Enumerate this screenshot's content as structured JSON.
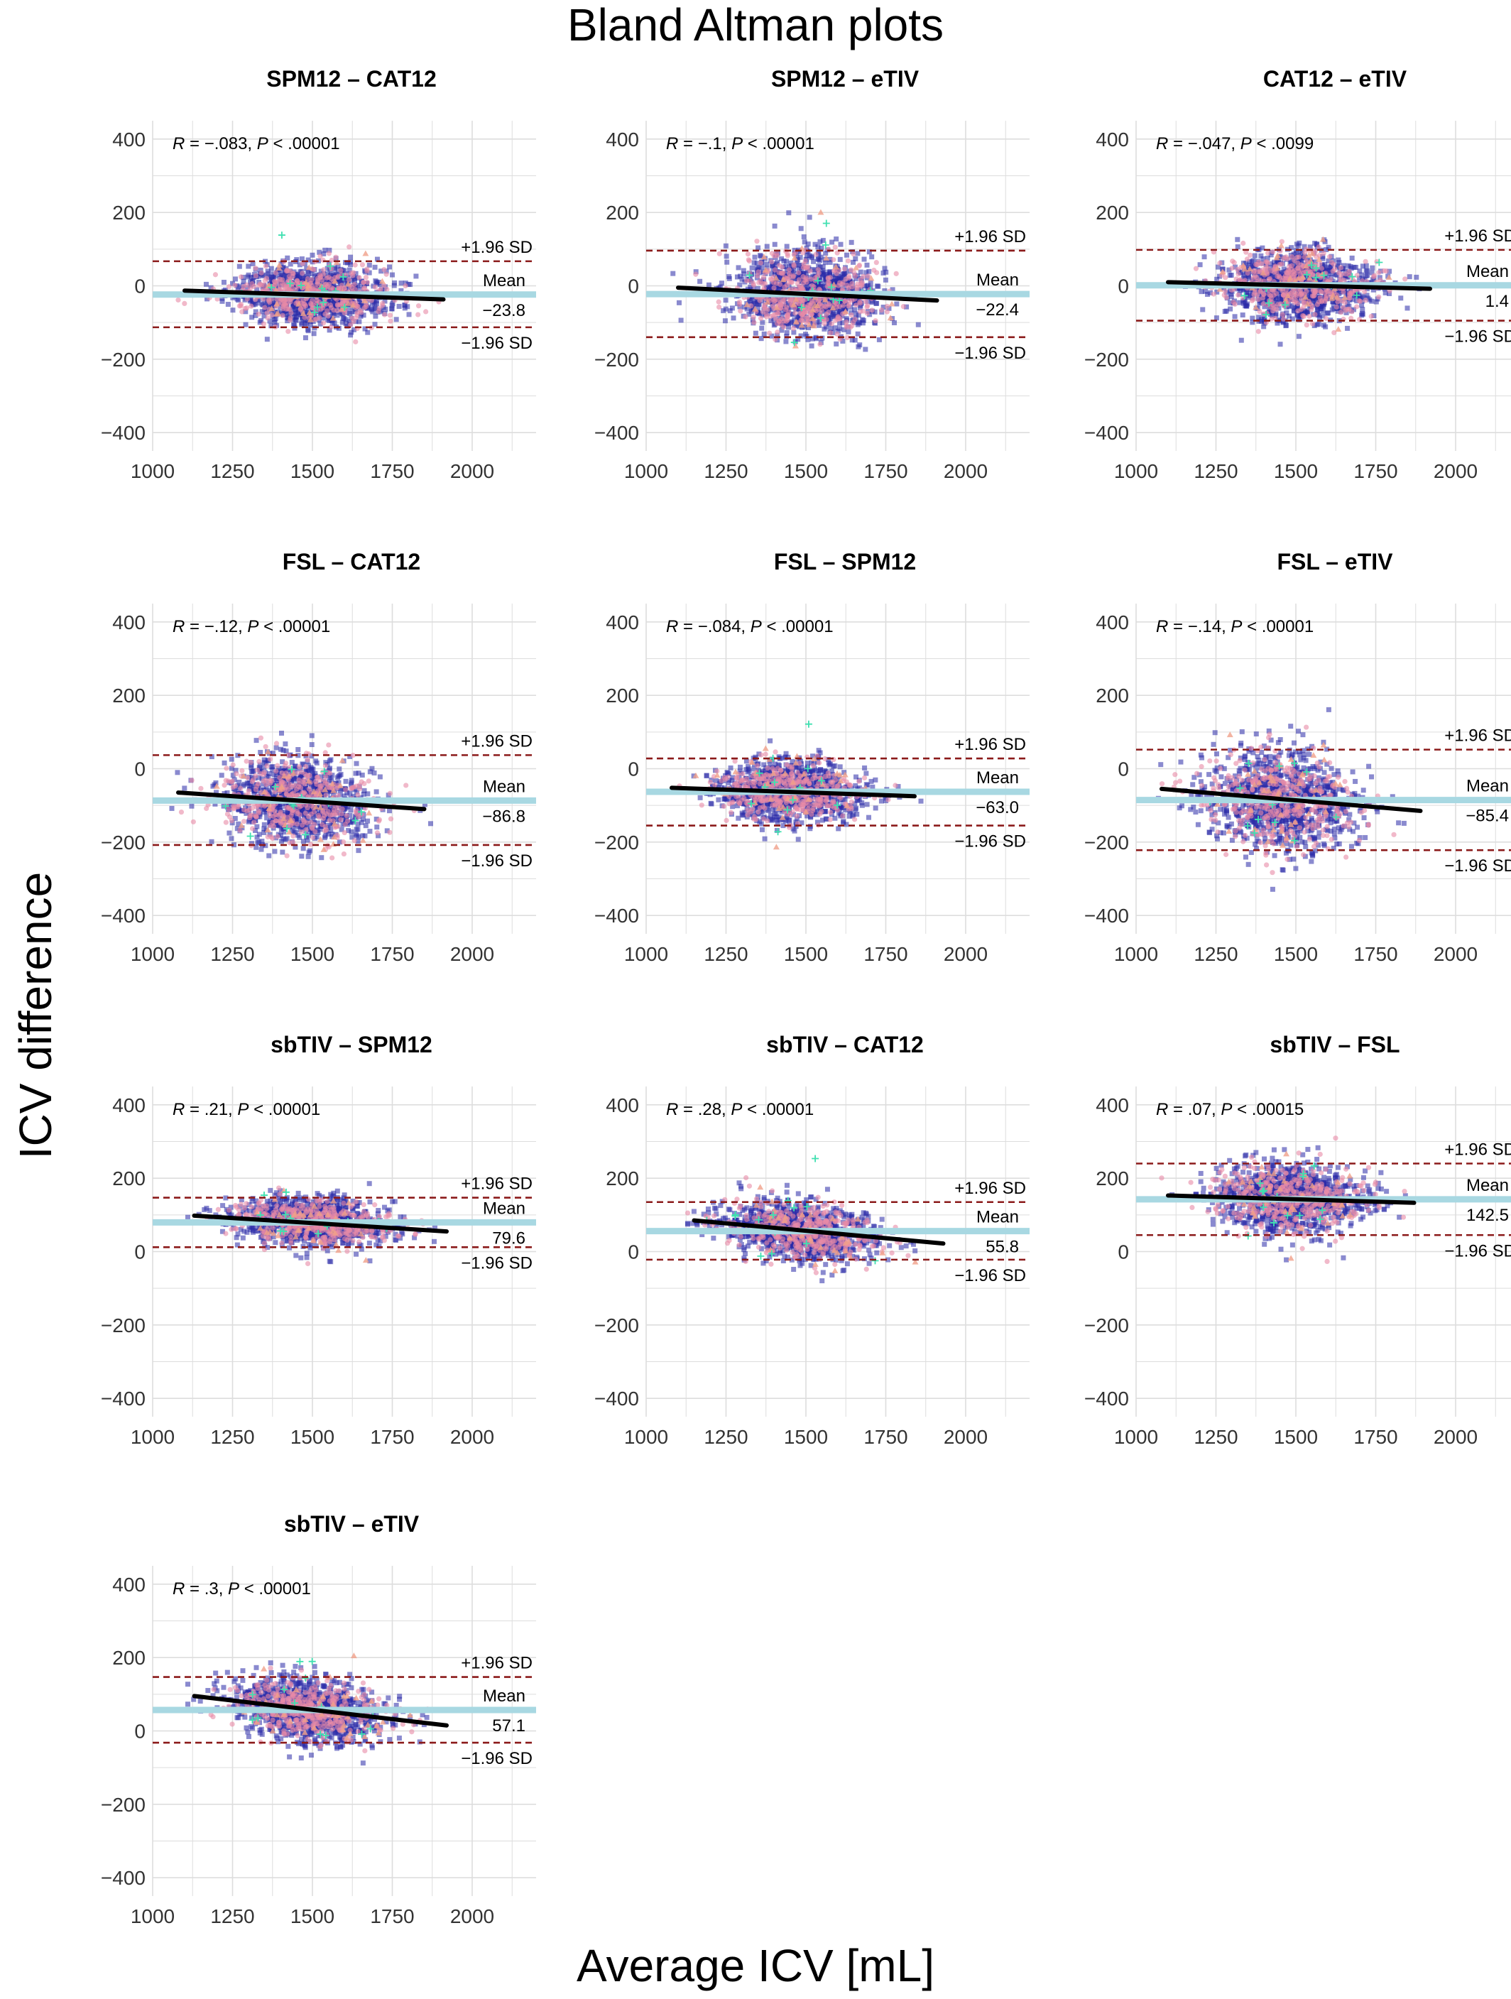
{
  "title": "Bland Altman plots",
  "xlabel": "Average ICV [mL]",
  "ylabel": "ICV difference",
  "colors": {
    "points_square": "#2a2aa8",
    "points_circle": "#e88aa6",
    "points_triangle": "#f0a08a",
    "points_plus": "#3fe0b0",
    "mean_line": "#a8d8e2",
    "sd_line": "#8b1a1a",
    "regression_line": "#000000",
    "grid": "#dddddd"
  },
  "labels": {
    "plus_sd": "+1.96 SD",
    "minus_sd": "−1.96 SD",
    "mean": "Mean"
  },
  "chart_data": [
    {
      "type": "scatter",
      "title": "SPM12 – CAT12",
      "r_label": "R",
      "r_text": " = −.083, ",
      "p_label": "P",
      "p_text": " < .00001",
      "mean": -23.8,
      "mean_text": "−23.8",
      "upper_sd": 67,
      "lower_sd": -113,
      "x_center": 1500,
      "x_sd": 120,
      "y_spread": 45,
      "regression": [
        [
          1100,
          -13
        ],
        [
          1910,
          -37
        ]
      ],
      "xlim": [
        1000,
        2200
      ],
      "ylim": [
        -450,
        450
      ],
      "x_ticks": [
        1000,
        1250,
        1500,
        1750,
        2000
      ],
      "y_ticks": [
        -400,
        -200,
        0,
        200,
        400
      ],
      "grid": true
    },
    {
      "type": "scatter",
      "title": "SPM12 – eTIV",
      "r_label": "R",
      "r_text": " = −.1, ",
      "p_label": "P",
      "p_text": " < .00001",
      "mean": -22.4,
      "mean_text": "−22.4",
      "upper_sd": 96,
      "lower_sd": -140,
      "x_center": 1500,
      "x_sd": 120,
      "y_spread": 60,
      "regression": [
        [
          1100,
          -5
        ],
        [
          1910,
          -40
        ]
      ],
      "xlim": [
        1000,
        2200
      ],
      "ylim": [
        -450,
        450
      ],
      "x_ticks": [
        1000,
        1250,
        1500,
        1750,
        2000
      ],
      "y_ticks": [
        -400,
        -200,
        0,
        200,
        400
      ],
      "grid": true
    },
    {
      "type": "scatter",
      "title": "CAT12 – eTIV",
      "r_label": "R",
      "r_text": " = −.047, ",
      "p_label": "P",
      "p_text": " < .0099",
      "mean": 1.4,
      "mean_text": "1.4",
      "upper_sd": 98,
      "lower_sd": -95,
      "x_center": 1510,
      "x_sd": 120,
      "y_spread": 50,
      "regression": [
        [
          1100,
          10
        ],
        [
          1920,
          -8
        ]
      ],
      "xlim": [
        1000,
        2200
      ],
      "ylim": [
        -450,
        450
      ],
      "x_ticks": [
        1000,
        1250,
        1500,
        1750,
        2000
      ],
      "y_ticks": [
        -400,
        -200,
        0,
        200,
        400
      ],
      "grid": true
    },
    {
      "type": "scatter",
      "title": "FSL – CAT12",
      "r_label": "R",
      "r_text": " = −.12, ",
      "p_label": "P",
      "p_text": " < .00001",
      "mean": -86.8,
      "mean_text": "−86.8",
      "upper_sd": 37,
      "lower_sd": -208,
      "x_center": 1450,
      "x_sd": 120,
      "y_spread": 62,
      "regression": [
        [
          1080,
          -65
        ],
        [
          1850,
          -110
        ]
      ],
      "xlim": [
        1000,
        2200
      ],
      "ylim": [
        -450,
        450
      ],
      "x_ticks": [
        1000,
        1250,
        1500,
        1750,
        2000
      ],
      "y_ticks": [
        -400,
        -200,
        0,
        200,
        400
      ],
      "grid": true
    },
    {
      "type": "scatter",
      "title": "FSL – SPM12",
      "r_label": "R",
      "r_text": " = −.084, ",
      "p_label": "P",
      "p_text": " < .00001",
      "mean": -63.0,
      "mean_text": "−63.0",
      "upper_sd": 28,
      "lower_sd": -155,
      "x_center": 1450,
      "x_sd": 110,
      "y_spread": 45,
      "regression": [
        [
          1080,
          -52
        ],
        [
          1840,
          -75
        ]
      ],
      "xlim": [
        1000,
        2200
      ],
      "ylim": [
        -450,
        450
      ],
      "x_ticks": [
        1000,
        1250,
        1500,
        1750,
        2000
      ],
      "y_ticks": [
        -400,
        -200,
        0,
        200,
        400
      ],
      "grid": true
    },
    {
      "type": "scatter",
      "title": "FSL – eTIV",
      "r_label": "R",
      "r_text": " = −.14, ",
      "p_label": "P",
      "p_text": " < .00001",
      "mean": -85.4,
      "mean_text": "−85.4",
      "upper_sd": 52,
      "lower_sd": -222,
      "x_center": 1450,
      "x_sd": 120,
      "y_spread": 70,
      "regression": [
        [
          1080,
          -55
        ],
        [
          1890,
          -115
        ]
      ],
      "xlim": [
        1000,
        2200
      ],
      "ylim": [
        -450,
        450
      ],
      "x_ticks": [
        1000,
        1250,
        1500,
        1750,
        2000
      ],
      "y_ticks": [
        -400,
        -200,
        0,
        200,
        400
      ],
      "grid": true
    },
    {
      "type": "scatter",
      "title": "sbTIV – SPM12",
      "r_label": "R",
      "r_text": " = .21, ",
      "p_label": "P",
      "p_text": " < .00001",
      "mean": 79.6,
      "mean_text": "79.6",
      "upper_sd": 147,
      "lower_sd": 12,
      "x_center": 1500,
      "x_sd": 120,
      "y_spread": 35,
      "regression": [
        [
          1130,
          98
        ],
        [
          1920,
          55
        ]
      ],
      "xlim": [
        1000,
        2200
      ],
      "ylim": [
        -450,
        450
      ],
      "x_ticks": [
        1000,
        1250,
        1500,
        1750,
        2000
      ],
      "y_ticks": [
        -400,
        -200,
        0,
        200,
        400
      ],
      "grid": true
    },
    {
      "type": "scatter",
      "title": "sbTIV – CAT12",
      "r_label": "R",
      "r_text": " = .28, ",
      "p_label": "P",
      "p_text": " < .00001",
      "mean": 55.8,
      "mean_text": "55.8",
      "upper_sd": 135,
      "lower_sd": -22,
      "x_center": 1480,
      "x_sd": 120,
      "y_spread": 42,
      "regression": [
        [
          1150,
          85
        ],
        [
          1930,
          22
        ]
      ],
      "xlim": [
        1000,
        2200
      ],
      "ylim": [
        -450,
        450
      ],
      "x_ticks": [
        1000,
        1250,
        1500,
        1750,
        2000
      ],
      "y_ticks": [
        -400,
        -200,
        0,
        200,
        400
      ],
      "grid": true
    },
    {
      "type": "scatter",
      "title": "sbTIV – FSL",
      "r_label": "R",
      "r_text": " = .07, ",
      "p_label": "P",
      "p_text": " < .00015",
      "mean": 142.5,
      "mean_text": "142.5",
      "upper_sd": 240,
      "lower_sd": 45,
      "x_center": 1480,
      "x_sd": 120,
      "y_spread": 50,
      "regression": [
        [
          1100,
          153
        ],
        [
          1870,
          133
        ]
      ],
      "xlim": [
        1000,
        2200
      ],
      "ylim": [
        -450,
        450
      ],
      "x_ticks": [
        1000,
        1250,
        1500,
        1750,
        2000
      ],
      "y_ticks": [
        -400,
        -200,
        0,
        200,
        400
      ],
      "grid": true
    },
    {
      "type": "scatter",
      "title": "sbTIV – eTIV",
      "r_label": "R",
      "r_text": " = .3, ",
      "p_label": "P",
      "p_text": " < .00001",
      "mean": 57.1,
      "mean_text": "57.1",
      "upper_sd": 147,
      "lower_sd": -32,
      "x_center": 1490,
      "x_sd": 120,
      "y_spread": 45,
      "regression": [
        [
          1130,
          95
        ],
        [
          1920,
          15
        ]
      ],
      "xlim": [
        1000,
        2200
      ],
      "ylim": [
        -450,
        450
      ],
      "x_ticks": [
        1000,
        1250,
        1500,
        1750,
        2000
      ],
      "y_ticks": [
        -400,
        -200,
        0,
        200,
        400
      ],
      "grid": true
    }
  ]
}
